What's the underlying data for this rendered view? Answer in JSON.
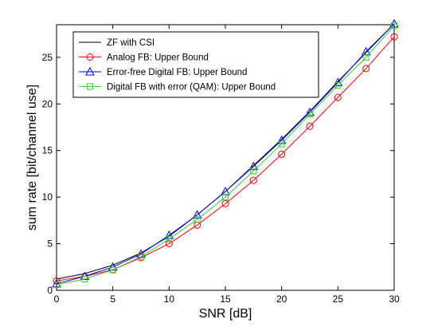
{
  "chart_data": {
    "type": "line",
    "title": "",
    "xlabel": "SNR [dB]",
    "ylabel": "sum rate [bit/channel use]",
    "xlim": [
      0,
      30
    ],
    "ylim": [
      0,
      28.5
    ],
    "xticks": [
      0,
      5,
      10,
      15,
      20,
      25,
      30
    ],
    "yticks": [
      0,
      5,
      10,
      15,
      20,
      25
    ],
    "grid": false,
    "legend_position": "top-left",
    "x": [
      0,
      2.5,
      5,
      7.5,
      10,
      12.5,
      15,
      17.5,
      20,
      22.5,
      25,
      27.5,
      30
    ],
    "series": [
      {
        "name": "ZF with CSI",
        "color": "#000000",
        "marker": "none",
        "values": [
          1.2,
          1.8,
          2.7,
          4.0,
          5.8,
          8.1,
          10.6,
          13.4,
          16.2,
          19.2,
          22.4,
          25.5,
          28.6
        ]
      },
      {
        "name": "Analog FB: Upper Bound",
        "color": "#ff0000",
        "marker": "circle",
        "values": [
          1.0,
          1.5,
          2.2,
          3.5,
          5.0,
          7.0,
          9.3,
          11.8,
          14.6,
          17.6,
          20.7,
          23.8,
          27.2
        ]
      },
      {
        "name": "Error-free Digital FB: Upper Bound",
        "color": "#0000ff",
        "marker": "triangle",
        "values": [
          0.7,
          1.5,
          2.5,
          3.9,
          5.9,
          8.1,
          10.6,
          13.3,
          16.1,
          19.1,
          22.3,
          25.6,
          28.6
        ]
      },
      {
        "name": "Digital FB with error (QAM): Upper Bound",
        "color": "#33cc33",
        "marker": "square",
        "values": [
          0.6,
          1.2,
          2.2,
          3.6,
          5.5,
          7.6,
          10.0,
          12.8,
          15.7,
          18.9,
          22.0,
          25.0,
          28.4
        ]
      }
    ]
  }
}
